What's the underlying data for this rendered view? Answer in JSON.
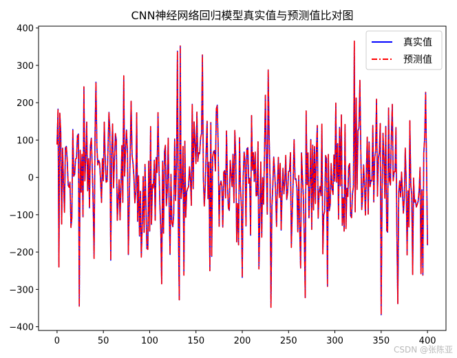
{
  "chart_data": {
    "type": "line",
    "title": "CNN神经网络回归模型真实值与预测值比对图",
    "xlabel": "",
    "ylabel": "",
    "xlim": [
      -20,
      420
    ],
    "ylim": [
      -410,
      405
    ],
    "xticks": [
      0,
      50,
      100,
      150,
      200,
      250,
      300,
      350,
      400
    ],
    "yticks": [
      -400,
      -300,
      -200,
      -100,
      0,
      100,
      200,
      300,
      400
    ],
    "grid": false,
    "legend_position": "top-right",
    "n_points": 400,
    "series": [
      {
        "name": "真实值",
        "color": "#0000ff",
        "style": "solid"
      },
      {
        "name": "预测值",
        "color": "#ff0000",
        "style": "dashdot"
      }
    ],
    "key_points": [
      {
        "x": 0,
        "y": 88
      },
      {
        "x": 1,
        "y": 183
      },
      {
        "x": 2,
        "y": -240
      },
      {
        "x": 3,
        "y": 172
      },
      {
        "x": 5,
        "y": -125
      },
      {
        "x": 24,
        "y": -345
      },
      {
        "x": 42,
        "y": 255
      },
      {
        "x": 58,
        "y": -222
      },
      {
        "x": 72,
        "y": 272
      },
      {
        "x": 113,
        "y": -285
      },
      {
        "x": 130,
        "y": 338
      },
      {
        "x": 132,
        "y": -328
      },
      {
        "x": 133,
        "y": 352
      },
      {
        "x": 137,
        "y": -262
      },
      {
        "x": 157,
        "y": 328
      },
      {
        "x": 165,
        "y": -250
      },
      {
        "x": 200,
        "y": -268
      },
      {
        "x": 228,
        "y": 288
      },
      {
        "x": 231,
        "y": -348
      },
      {
        "x": 268,
        "y": -322
      },
      {
        "x": 292,
        "y": -292
      },
      {
        "x": 321,
        "y": 365
      },
      {
        "x": 350,
        "y": -368
      },
      {
        "x": 368,
        "y": -338
      },
      {
        "x": 395,
        "y": -262
      },
      {
        "x": 398,
        "y": 228
      },
      {
        "x": 400,
        "y": -182
      }
    ]
  },
  "watermark": "CSDN @张陈亚"
}
